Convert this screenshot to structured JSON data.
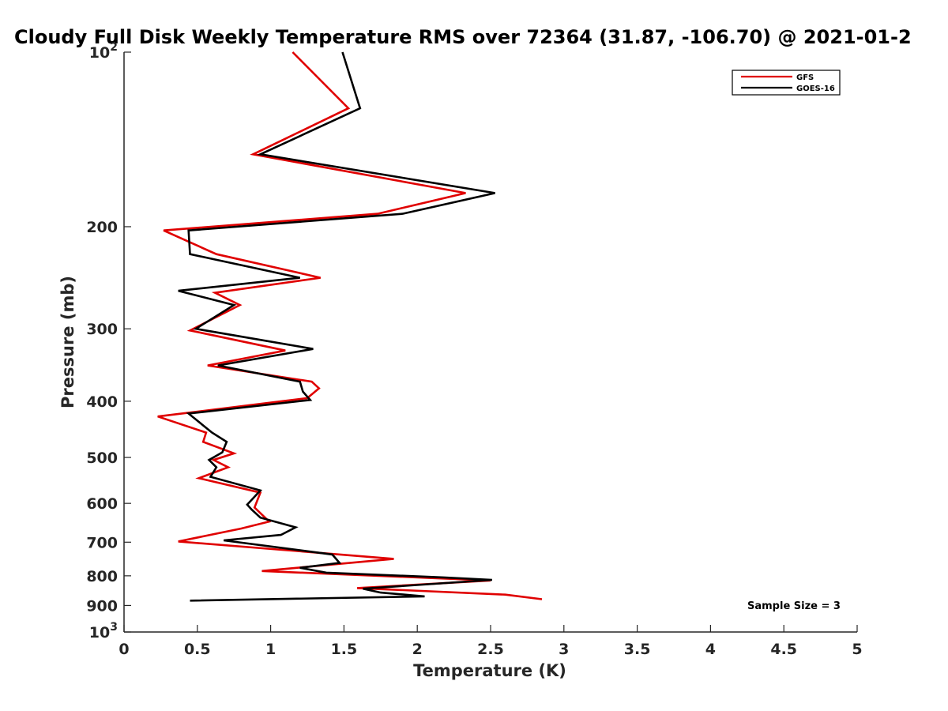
{
  "chart_data": {
    "type": "line",
    "title": "Cloudy Full Disk Weekly Temperature RMS over 72364 (31.87, -106.70) @ 2021-01-2",
    "xlabel": "Temperature (K)",
    "ylabel": "Pressure (mb)",
    "xlim": [
      0,
      5
    ],
    "ylim": [
      100,
      1000
    ],
    "y_scale": "log",
    "y_reversed": true,
    "grid": false,
    "legend_position": "top-right",
    "x_ticks": [
      0,
      0.5,
      1,
      1.5,
      2,
      2.5,
      3,
      3.5,
      4,
      4.5,
      5
    ],
    "x_tick_labels": [
      "0",
      "0.5",
      "1",
      "1.5",
      "2",
      "2.5",
      "3",
      "3.5",
      "4",
      "4.5",
      "5"
    ],
    "y_ticks": [
      100,
      200,
      300,
      400,
      500,
      600,
      700,
      800,
      900,
      1000
    ],
    "y_tick_labels": [
      {
        "base": "10",
        "exp": "2"
      },
      {
        "base": "200",
        "exp": ""
      },
      {
        "base": "300",
        "exp": ""
      },
      {
        "base": "400",
        "exp": ""
      },
      {
        "base": "500",
        "exp": ""
      },
      {
        "base": "600",
        "exp": ""
      },
      {
        "base": "700",
        "exp": ""
      },
      {
        "base": "800",
        "exp": ""
      },
      {
        "base": "900",
        "exp": ""
      },
      {
        "base": "10",
        "exp": "3"
      }
    ],
    "series": [
      {
        "name": "GFS",
        "color": "#e00000",
        "points": [
          [
            1.15,
            100
          ],
          [
            1.53,
            125
          ],
          [
            0.88,
            150
          ],
          [
            2.33,
            175
          ],
          [
            1.73,
            190
          ],
          [
            0.27,
            203
          ],
          [
            0.63,
            223
          ],
          [
            1.34,
            245
          ],
          [
            0.62,
            260
          ],
          [
            0.79,
            273
          ],
          [
            0.45,
            302
          ],
          [
            1.1,
            327
          ],
          [
            0.57,
            347
          ],
          [
            1.28,
            370
          ],
          [
            1.33,
            380
          ],
          [
            1.25,
            395
          ],
          [
            0.23,
            425
          ],
          [
            0.56,
            453
          ],
          [
            0.54,
            470
          ],
          [
            0.75,
            492
          ],
          [
            0.61,
            505
          ],
          [
            0.71,
            520
          ],
          [
            0.51,
            543
          ],
          [
            0.93,
            575
          ],
          [
            0.89,
            610
          ],
          [
            0.99,
            645
          ],
          [
            0.8,
            663
          ],
          [
            0.37,
            698
          ],
          [
            1.84,
            748
          ],
          [
            0.94,
            785
          ],
          [
            2.5,
            815
          ],
          [
            1.59,
            840
          ],
          [
            2.6,
            862
          ],
          [
            2.85,
            878
          ]
        ]
      },
      {
        "name": "GOES-16",
        "color": "#000000",
        "points": [
          [
            1.49,
            100
          ],
          [
            1.61,
            125
          ],
          [
            0.93,
            150
          ],
          [
            2.53,
            175
          ],
          [
            1.9,
            190
          ],
          [
            0.44,
            203
          ],
          [
            0.45,
            223
          ],
          [
            1.2,
            245
          ],
          [
            0.37,
            258
          ],
          [
            0.75,
            273
          ],
          [
            0.49,
            300
          ],
          [
            1.29,
            325
          ],
          [
            0.64,
            347
          ],
          [
            1.2,
            370
          ],
          [
            1.22,
            385
          ],
          [
            1.27,
            398
          ],
          [
            0.44,
            420
          ],
          [
            0.6,
            453
          ],
          [
            0.7,
            470
          ],
          [
            0.67,
            490
          ],
          [
            0.58,
            505
          ],
          [
            0.63,
            520
          ],
          [
            0.59,
            540
          ],
          [
            0.93,
            570
          ],
          [
            0.84,
            603
          ],
          [
            0.87,
            615
          ],
          [
            0.93,
            635
          ],
          [
            1.17,
            660
          ],
          [
            1.07,
            680
          ],
          [
            0.68,
            695
          ],
          [
            1.42,
            735
          ],
          [
            1.47,
            760
          ],
          [
            1.2,
            775
          ],
          [
            1.38,
            790
          ],
          [
            2.18,
            805
          ],
          [
            2.51,
            813
          ],
          [
            1.63,
            842
          ],
          [
            1.75,
            855
          ],
          [
            2.05,
            868
          ],
          [
            0.45,
            883
          ]
        ]
      }
    ],
    "annotations": [
      {
        "text": "Sample Size = 3",
        "position": "bottom-right"
      }
    ]
  }
}
